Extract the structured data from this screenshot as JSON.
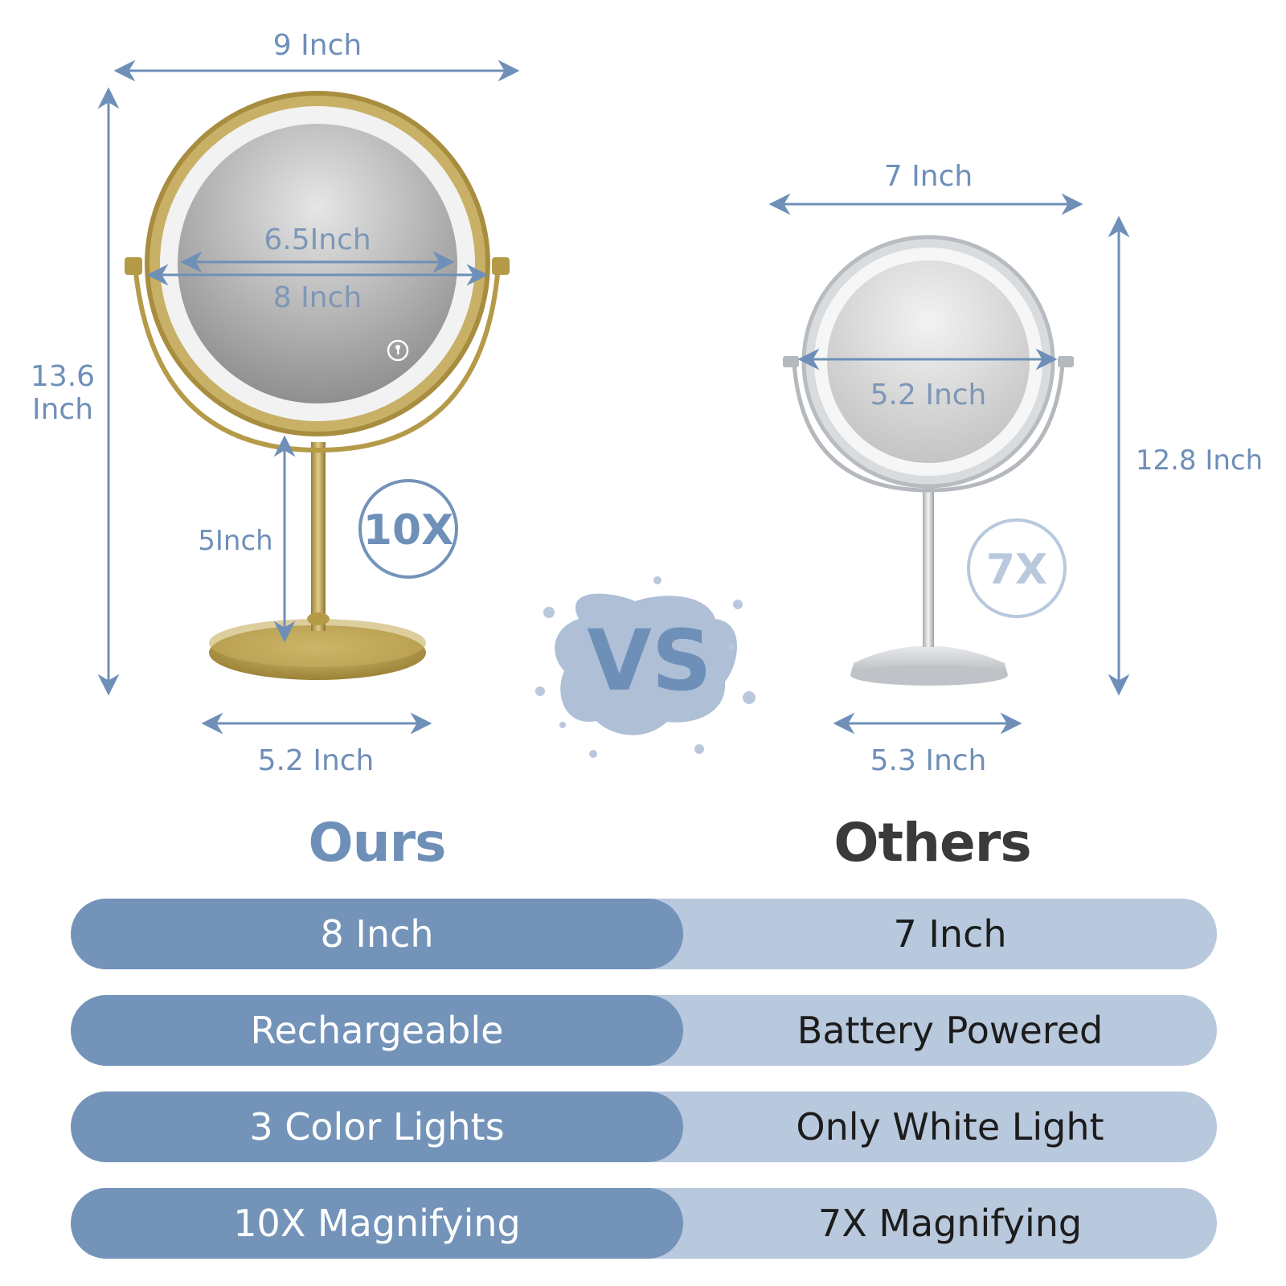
{
  "ours": {
    "heading": "Ours",
    "width_label": "9 Inch",
    "height_label_line1": "13.6",
    "height_label_line2": "Inch",
    "mirror_outer_label": "8 Inch",
    "mirror_inner_label": "6.5Inch",
    "stem_label": "5Inch",
    "base_label": "5.2 Inch",
    "magnification_badge": "10X"
  },
  "others": {
    "heading": "Others",
    "width_label": "7 Inch",
    "height_label": "12.8 Inch",
    "mirror_label": "5.2 Inch",
    "base_label": "5.3 Inch",
    "magnification_badge": "7X"
  },
  "vs_label": "VS",
  "comparison_rows": [
    {
      "ours": "8 Inch",
      "others": "7 Inch"
    },
    {
      "ours": "Rechargeable",
      "others": "Battery Powered"
    },
    {
      "ours": "3 Color Lights",
      "others": "Only White Light"
    },
    {
      "ours": "10X Magnifying",
      "others": "7X Magnifying"
    }
  ],
  "colors": {
    "accent_blue": "#7393b9",
    "light_blue": "#b8c8dd",
    "dim_text": "#7d97b6",
    "gold": "#b59a48",
    "chrome": "#c8ccd0"
  }
}
